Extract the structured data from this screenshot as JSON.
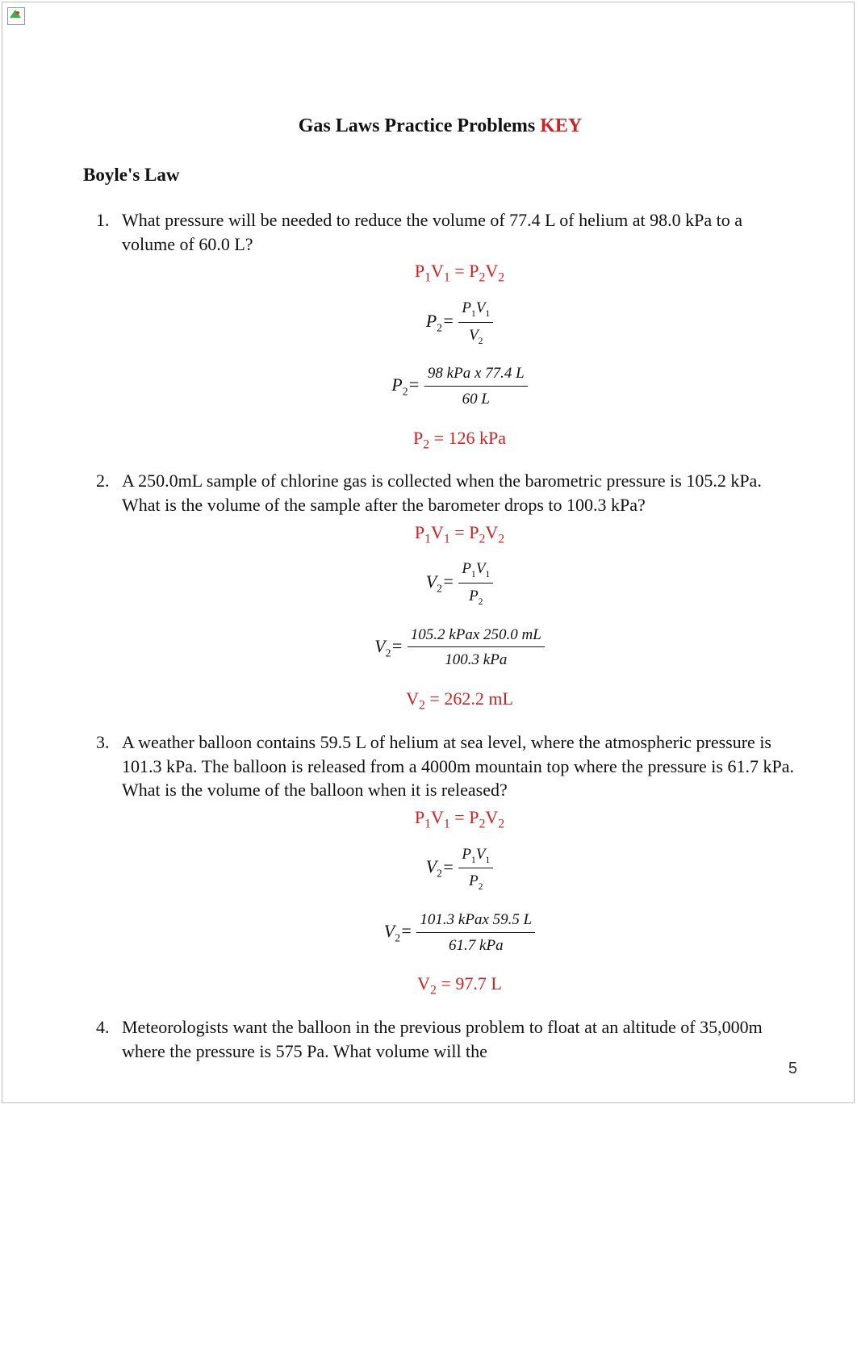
{
  "colors": {
    "answer": "#cc2222",
    "text": "#111111",
    "frame": "#bfbfbf",
    "background": "#ffffff"
  },
  "title": {
    "main": "Gas Laws Practice Problems ",
    "key": "KEY"
  },
  "section": "Boyle's Law",
  "law_equation": {
    "lhs_P": "P",
    "lhs_V": "V",
    "eq": " = "
  },
  "problems": [
    {
      "q": "What pressure will be needed to reduce the volume of 77.4 L of helium at 98.0 kPa to a volume of 60.0 L?",
      "solve_var": "P",
      "solve_sub": "2",
      "num_sym": {
        "a": "P",
        "as": "1",
        "b": "V",
        "bs": "1"
      },
      "den_sym": {
        "a": "V",
        "as": "2"
      },
      "plug_num": "98 kPa x 77.4 L",
      "plug_den": "60 L",
      "answer": {
        "var": "P",
        "sub": "2",
        "val": " = 126 kPa"
      }
    },
    {
      "q": "A 250.0mL sample of chlorine gas is collected when the barometric pressure is 105.2 kPa. What is the volume of the sample after the barometer drops to 100.3 kPa?",
      "solve_var": "V",
      "solve_sub": "2",
      "num_sym": {
        "a": "P",
        "as": "1",
        "b": "V",
        "bs": "1"
      },
      "den_sym": {
        "a": "P",
        "as": "2"
      },
      "plug_num": "105.2 kPax 250.0 mL",
      "plug_den": "100.3 kPa",
      "answer": {
        "var": "V",
        "sub": "2",
        "val": " = 262.2 mL"
      }
    },
    {
      "q": "A weather balloon contains 59.5 L of helium at sea level, where the atmospheric pressure is 101.3 kPa. The balloon is released from a 4000m mountain top where the pressure is 61.7 kPa. What is the volume of the balloon when it is released?",
      "solve_var": "V",
      "solve_sub": "2",
      "num_sym": {
        "a": "P",
        "as": "1",
        "b": "V",
        "bs": "1"
      },
      "den_sym": {
        "a": "P",
        "as": "2"
      },
      "plug_num": "101.3 kPax 59.5 L",
      "plug_den": "61.7 kPa",
      "answer": {
        "var": "V",
        "sub": "2",
        "val": " = 97.7 L"
      }
    },
    {
      "q": "Meteorologists want the balloon in the previous problem to float at an altitude of 35,000m where the pressure is 575 Pa. What volume will the"
    }
  ],
  "page_number": "5"
}
